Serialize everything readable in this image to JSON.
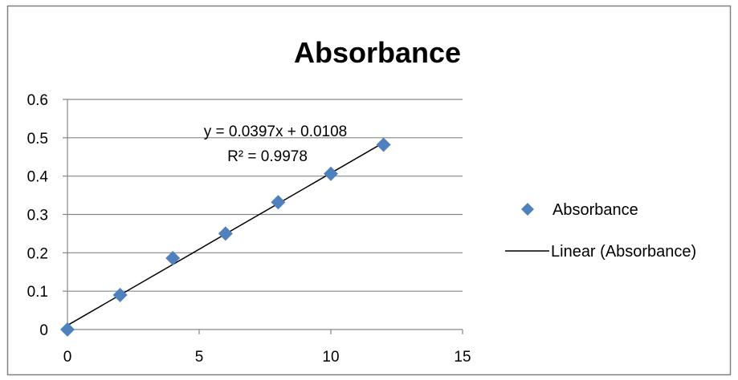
{
  "chart_data": {
    "type": "scatter",
    "title": "Absorbance",
    "xlim": [
      0,
      15
    ],
    "ylim": [
      0,
      0.6
    ],
    "x_ticks": [
      "0",
      "5",
      "10",
      "15"
    ],
    "y_ticks": [
      "0",
      "0.1",
      "0.2",
      "0.3",
      "0.4",
      "0.5",
      "0.6"
    ],
    "grid": "horizontal major gridlines",
    "legend_position": "right",
    "series": [
      {
        "name": "Absorbance",
        "marker": "diamond",
        "color": "#4F81BD",
        "x": [
          0,
          2,
          4,
          6,
          8,
          10,
          12
        ],
        "y": [
          0,
          0.09,
          0.186,
          0.25,
          0.332,
          0.406,
          0.482
        ]
      }
    ],
    "trendline": {
      "name": "Linear (Absorbance)",
      "type": "linear",
      "slope": 0.0397,
      "intercept": 0.0108,
      "x_range": [
        0,
        12
      ],
      "color": "#000000",
      "equation_label": "y = 0.0397x + 0.0108",
      "r2_label": "R² = 0.9978"
    }
  }
}
